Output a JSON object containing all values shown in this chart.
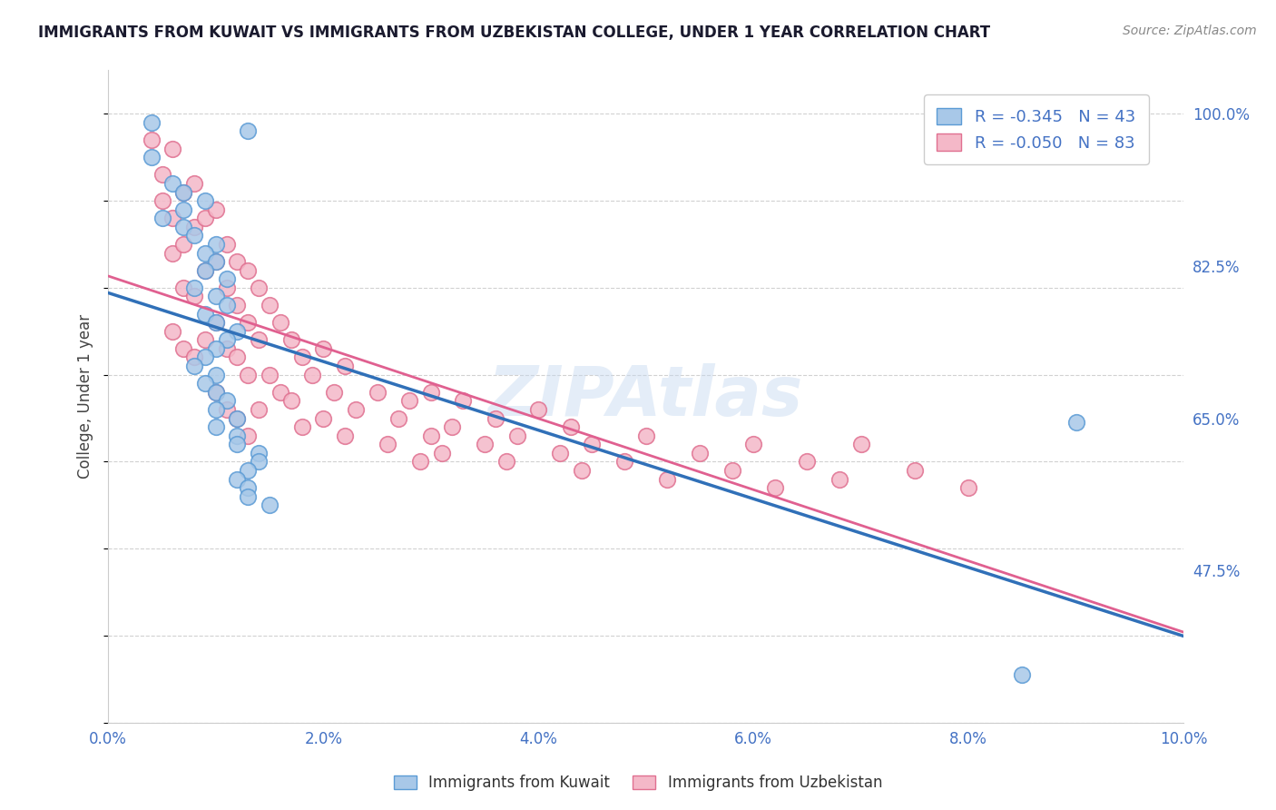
{
  "title": "IMMIGRANTS FROM KUWAIT VS IMMIGRANTS FROM UZBEKISTAN COLLEGE, UNDER 1 YEAR CORRELATION CHART",
  "source": "Source: ZipAtlas.com",
  "ylabel": "College, Under 1 year",
  "legend_label1": "Immigrants from Kuwait",
  "legend_label2": "Immigrants from Uzbekistan",
  "R1": -0.345,
  "N1": 43,
  "R2": -0.05,
  "N2": 83,
  "color_blue_fill": "#a8c8e8",
  "color_blue_edge": "#5b9bd5",
  "color_pink_fill": "#f4b8c8",
  "color_pink_edge": "#e07090",
  "color_blue_line": "#3070b8",
  "color_pink_line": "#e06090",
  "color_axis_text": "#4472c4",
  "xmin": 0.0,
  "xmax": 0.1,
  "ymin": 0.3,
  "ymax": 1.05,
  "yticks": [
    0.475,
    0.65,
    0.825,
    1.0
  ],
  "ytick_labels": [
    "47.5%",
    "65.0%",
    "82.5%",
    "100.0%"
  ],
  "xticks": [
    0.0,
    0.02,
    0.04,
    0.06,
    0.08,
    0.1
  ],
  "xtick_labels": [
    "0.0%",
    "2.0%",
    "4.0%",
    "6.0%",
    "8.0%",
    "10.0%"
  ],
  "kuwait_x": [
    0.004,
    0.013,
    0.004,
    0.006,
    0.007,
    0.009,
    0.007,
    0.005,
    0.007,
    0.008,
    0.01,
    0.009,
    0.01,
    0.009,
    0.011,
    0.008,
    0.01,
    0.011,
    0.009,
    0.01,
    0.012,
    0.011,
    0.01,
    0.009,
    0.008,
    0.01,
    0.009,
    0.01,
    0.011,
    0.01,
    0.012,
    0.01,
    0.012,
    0.012,
    0.014,
    0.014,
    0.013,
    0.012,
    0.013,
    0.013,
    0.015,
    0.09,
    0.085
  ],
  "kuwait_y": [
    0.99,
    0.98,
    0.95,
    0.92,
    0.91,
    0.9,
    0.89,
    0.88,
    0.87,
    0.86,
    0.85,
    0.84,
    0.83,
    0.82,
    0.81,
    0.8,
    0.79,
    0.78,
    0.77,
    0.76,
    0.75,
    0.74,
    0.73,
    0.72,
    0.71,
    0.7,
    0.69,
    0.68,
    0.67,
    0.66,
    0.65,
    0.64,
    0.63,
    0.62,
    0.61,
    0.6,
    0.59,
    0.58,
    0.57,
    0.56,
    0.55,
    0.645,
    0.355
  ],
  "uzbek_x": [
    0.004,
    0.005,
    0.005,
    0.006,
    0.006,
    0.006,
    0.006,
    0.007,
    0.007,
    0.007,
    0.007,
    0.008,
    0.008,
    0.008,
    0.008,
    0.009,
    0.009,
    0.009,
    0.01,
    0.01,
    0.01,
    0.01,
    0.011,
    0.011,
    0.011,
    0.011,
    0.012,
    0.012,
    0.012,
    0.012,
    0.013,
    0.013,
    0.013,
    0.013,
    0.014,
    0.014,
    0.014,
    0.015,
    0.015,
    0.016,
    0.016,
    0.017,
    0.017,
    0.018,
    0.018,
    0.019,
    0.02,
    0.02,
    0.021,
    0.022,
    0.022,
    0.023,
    0.025,
    0.026,
    0.027,
    0.028,
    0.029,
    0.03,
    0.03,
    0.031,
    0.032,
    0.033,
    0.035,
    0.036,
    0.037,
    0.038,
    0.04,
    0.042,
    0.043,
    0.044,
    0.045,
    0.048,
    0.05,
    0.052,
    0.055,
    0.058,
    0.06,
    0.062,
    0.065,
    0.068,
    0.07,
    0.075,
    0.08
  ],
  "uzbek_y": [
    0.97,
    0.93,
    0.9,
    0.96,
    0.88,
    0.84,
    0.75,
    0.91,
    0.85,
    0.8,
    0.73,
    0.92,
    0.87,
    0.79,
    0.72,
    0.88,
    0.82,
    0.74,
    0.89,
    0.83,
    0.76,
    0.68,
    0.85,
    0.8,
    0.73,
    0.66,
    0.83,
    0.78,
    0.72,
    0.65,
    0.82,
    0.76,
    0.7,
    0.63,
    0.8,
    0.74,
    0.66,
    0.78,
    0.7,
    0.76,
    0.68,
    0.74,
    0.67,
    0.72,
    0.64,
    0.7,
    0.73,
    0.65,
    0.68,
    0.71,
    0.63,
    0.66,
    0.68,
    0.62,
    0.65,
    0.67,
    0.6,
    0.63,
    0.68,
    0.61,
    0.64,
    0.67,
    0.62,
    0.65,
    0.6,
    0.63,
    0.66,
    0.61,
    0.64,
    0.59,
    0.62,
    0.6,
    0.63,
    0.58,
    0.61,
    0.59,
    0.62,
    0.57,
    0.6,
    0.58,
    0.62,
    0.59,
    0.57
  ],
  "watermark": "ZIPAtlas",
  "background_color": "#ffffff",
  "grid_color": "#cccccc",
  "title_color": "#1a1a2e",
  "source_color": "#888888"
}
